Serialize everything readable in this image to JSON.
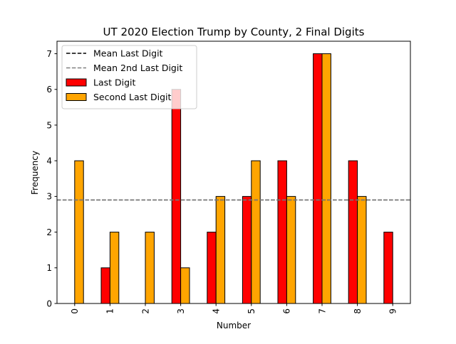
{
  "chart_data": {
    "type": "bar",
    "title": "UT 2020 Election Trump by County, 2 Final Digits",
    "xlabel": "Number",
    "ylabel": "Frequency",
    "categories": [
      "0",
      "1",
      "2",
      "3",
      "4",
      "5",
      "6",
      "7",
      "8",
      "9"
    ],
    "series": [
      {
        "name": "Last Digit",
        "color": "#ff0000",
        "values": [
          0,
          1,
          0,
          6,
          2,
          3,
          4,
          7,
          4,
          2
        ]
      },
      {
        "name": "Second Last Digit",
        "color": "#ffa500",
        "values": [
          4,
          2,
          2,
          1,
          3,
          4,
          3,
          7,
          3,
          0
        ]
      }
    ],
    "reference_lines": [
      {
        "name": "Mean Last Digit",
        "value": 2.9,
        "color": "#000000",
        "style": "dashed"
      },
      {
        "name": "Mean 2nd Last Digit",
        "value": 2.9,
        "color": "#808080",
        "style": "dashed"
      }
    ],
    "ylim": [
      0,
      7.35
    ],
    "yticks": [
      0,
      1,
      2,
      3,
      4,
      5,
      6,
      7
    ],
    "grid": false,
    "legend_position": "top-left",
    "legend_order": [
      "Mean Last Digit",
      "Mean 2nd Last Digit",
      "Last Digit",
      "Second Last Digit"
    ]
  }
}
